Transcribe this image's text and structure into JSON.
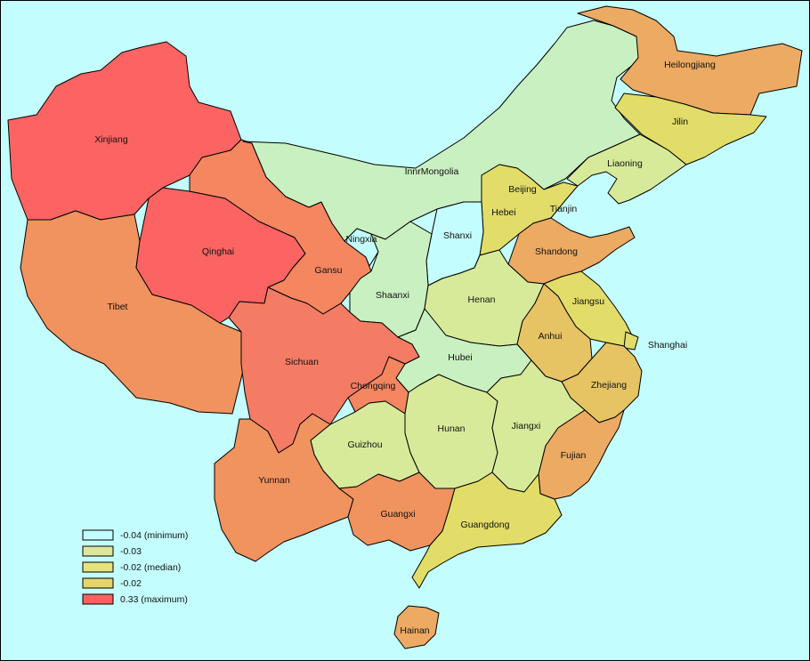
{
  "legend": {
    "items": [
      {
        "label": "-0.04 (minimum)",
        "color": "#c4fdfd"
      },
      {
        "label": "-0.03",
        "color": "#dde69a"
      },
      {
        "label": "-0.02 (median)",
        "color": "#e6e27c"
      },
      {
        "label": "-0.02",
        "color": "#e5d46a"
      },
      {
        "label": "0.33 (maximum)",
        "color": "#fe6060"
      }
    ]
  },
  "provinces": [
    {
      "name": "Xinjiang",
      "color": "#fb6462"
    },
    {
      "name": "Tibet",
      "color": "#f0935e"
    },
    {
      "name": "Qinghai",
      "color": "#fb6462"
    },
    {
      "name": "Gansu",
      "color": "#f48660"
    },
    {
      "name": "InnrMongolia",
      "color": "#c9f0c0"
    },
    {
      "name": "Heilongjiang",
      "color": "#ecaa63"
    },
    {
      "name": "Jilin",
      "color": "#e2dd68"
    },
    {
      "name": "Liaoning",
      "color": "#d7ea9a"
    },
    {
      "name": "Beijing",
      "color": "#c4fdfd"
    },
    {
      "name": "Tianjin",
      "color": "#c4fdfd"
    },
    {
      "name": "Hebei",
      "color": "#e2dd68"
    },
    {
      "name": "Shanxi",
      "color": "#c4fdfd"
    },
    {
      "name": "Shandong",
      "color": "#ecaa63"
    },
    {
      "name": "Ningxia",
      "color": "#c4fdfd"
    },
    {
      "name": "Shaanxi",
      "color": "#c9f0c0"
    },
    {
      "name": "Henan",
      "color": "#d7ea9a"
    },
    {
      "name": "Jiangsu",
      "color": "#e2dd68"
    },
    {
      "name": "Shanghai",
      "color": "#e2dd68"
    },
    {
      "name": "Anhui",
      "color": "#e6c464"
    },
    {
      "name": "Hubei",
      "color": "#c9f0c0"
    },
    {
      "name": "Sichuan",
      "color": "#f57c64"
    },
    {
      "name": "Chongqing",
      "color": "#f48660"
    },
    {
      "name": "Zhejiang",
      "color": "#e6c464"
    },
    {
      "name": "Hunan",
      "color": "#d7ea9a"
    },
    {
      "name": "Jiangxi",
      "color": "#d7ea9a"
    },
    {
      "name": "Guizhou",
      "color": "#d7ea9a"
    },
    {
      "name": "Fujian",
      "color": "#ecaa63"
    },
    {
      "name": "Yunnan",
      "color": "#f0935e"
    },
    {
      "name": "Guangxi",
      "color": "#f0935e"
    },
    {
      "name": "Guangdong",
      "color": "#e2dd68"
    },
    {
      "name": "Hainan",
      "color": "#ecaa63"
    }
  ]
}
